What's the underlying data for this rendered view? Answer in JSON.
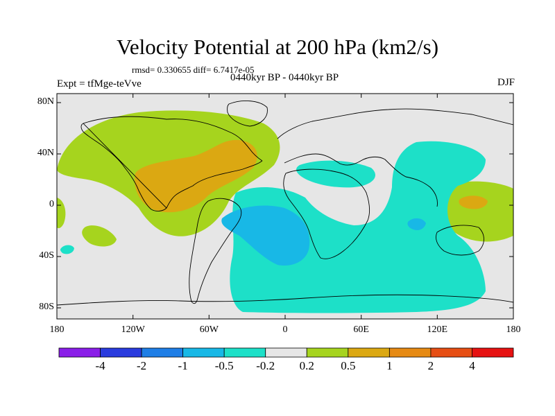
{
  "title": "Velocity Potential at 200 hPa (km2/s)",
  "stats_line": "rmsd= 0.330655 diff= 6.7417e-05",
  "experiment_label": "Expt = tfMge-teVve",
  "period_label": "0440kyr BP - 0440kyr BP",
  "season_label": "DJF",
  "lat_ticks": [
    "80N",
    "40N",
    "0",
    "40S",
    "80S"
  ],
  "lon_ticks": [
    "180",
    "120W",
    "60W",
    "0",
    "60E",
    "120E",
    "180"
  ],
  "colorbar": {
    "colors": [
      "#8a1ee8",
      "#2a3bde",
      "#1e7ee6",
      "#18b8e6",
      "#1de0c8",
      "#e6e6e6",
      "#a6d41e",
      "#dba812",
      "#e68a14",
      "#e64e14",
      "#e61212"
    ],
    "labels": [
      "-4",
      "-2",
      "-1",
      "-0.5",
      "-0.2",
      "0.2",
      "0.5",
      "1",
      "2",
      "4"
    ]
  },
  "map_colors": {
    "background": "#e6e6e6",
    "positive_low": "#a6d41e",
    "positive_mid": "#dba812",
    "negative_low": "#1de0c8",
    "negative_mid": "#18b8e6"
  }
}
